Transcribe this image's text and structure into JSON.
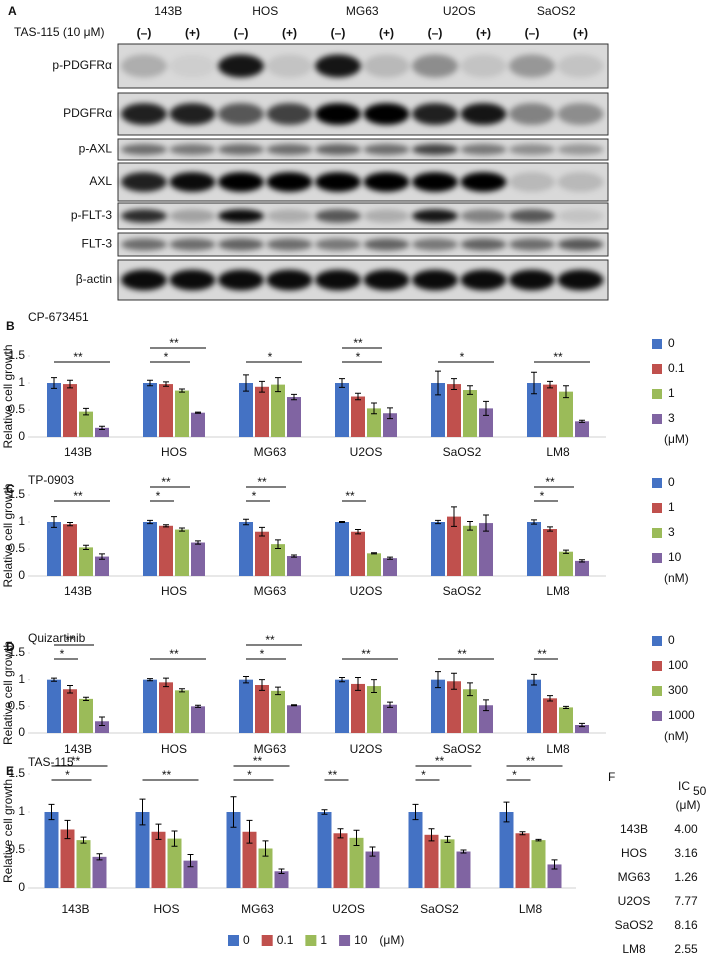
{
  "panel_a": {
    "label": "A",
    "treatment": "TAS-115 (10 μM)",
    "cell_lines": [
      "143B",
      "HOS",
      "MG63",
      "U2OS",
      "SaOS2"
    ],
    "conditions": [
      "(–)",
      "(+)",
      "(–)",
      "(+)",
      "(–)",
      "(+)",
      "(–)",
      "(+)",
      "(–)",
      "(+)"
    ],
    "rows": [
      "p-PDGFRα",
      "PDGFRα",
      "p-AXL",
      "AXL",
      "p-FLT-3",
      "FLT-3",
      "β-actin"
    ]
  },
  "chart_data": [
    {
      "type": "bar",
      "panel": "B",
      "title": "CP-673451",
      "y_label": "Relative cell growth",
      "legend": "right",
      "legend_unit": "(μM)",
      "categories": [
        "143B",
        "HOS",
        "MG63",
        "U2OS",
        "SaOS2",
        "LM8"
      ],
      "ylim": [
        0,
        1.5
      ],
      "yticks": [
        0,
        0.5,
        1,
        1.5
      ],
      "series": [
        {
          "name": "0",
          "color": "#4472c4",
          "values": [
            1.0,
            1.0,
            1.0,
            1.0,
            1.0,
            1.0
          ],
          "errors": [
            0.1,
            0.05,
            0.15,
            0.08,
            0.22,
            0.2
          ]
        },
        {
          "name": "0.1",
          "color": "#c0504d",
          "values": [
            0.98,
            0.98,
            0.93,
            0.75,
            0.98,
            0.97
          ],
          "errors": [
            0.07,
            0.04,
            0.1,
            0.06,
            0.1,
            0.06
          ]
        },
        {
          "name": "1",
          "color": "#9bbb59",
          "values": [
            0.47,
            0.86,
            0.97,
            0.53,
            0.87,
            0.84
          ],
          "errors": [
            0.06,
            0.03,
            0.13,
            0.1,
            0.08,
            0.11
          ]
        },
        {
          "name": "3",
          "color": "#8064a2",
          "values": [
            0.17,
            0.45,
            0.74,
            0.44,
            0.53,
            0.29
          ],
          "errors": [
            0.03,
            0.01,
            0.05,
            0.1,
            0.13,
            0.02
          ]
        }
      ],
      "significance": [
        {
          "category": "143B",
          "series": "3",
          "label": "**"
        },
        {
          "category": "HOS",
          "series": "1",
          "label": "*"
        },
        {
          "category": "HOS",
          "series": "3",
          "label": "**"
        },
        {
          "category": "MG63",
          "series": "3",
          "label": "*"
        },
        {
          "category": "U2OS",
          "series": "1",
          "label": "*"
        },
        {
          "category": "U2OS",
          "series": "1",
          "label": "**"
        },
        {
          "category": "SaOS2",
          "series": "3",
          "label": "*"
        },
        {
          "category": "LM8",
          "series": "3",
          "label": "**"
        }
      ]
    },
    {
      "type": "bar",
      "panel": "C",
      "title": "TP-0903",
      "y_label": "Relative cell growth",
      "legend": "right",
      "legend_unit": "(nM)",
      "categories": [
        "143B",
        "HOS",
        "MG63",
        "U2OS",
        "SaOS2",
        "LM8"
      ],
      "ylim": [
        0,
        1.5
      ],
      "yticks": [
        0,
        0.5,
        1,
        1.5
      ],
      "series": [
        {
          "name": "0",
          "color": "#4472c4",
          "values": [
            1.0,
            1.0,
            1.0,
            1.0,
            1.0,
            1.0
          ],
          "errors": [
            0.1,
            0.03,
            0.05,
            0.01,
            0.03,
            0.04
          ]
        },
        {
          "name": "1",
          "color": "#c0504d",
          "values": [
            0.96,
            0.93,
            0.82,
            0.82,
            1.1,
            0.87
          ],
          "errors": [
            0.03,
            0.02,
            0.08,
            0.04,
            0.18,
            0.04
          ]
        },
        {
          "name": "3",
          "color": "#9bbb59",
          "values": [
            0.53,
            0.86,
            0.59,
            0.42,
            0.93,
            0.45
          ],
          "errors": [
            0.04,
            0.03,
            0.08,
            0.01,
            0.08,
            0.03
          ]
        },
        {
          "name": "10",
          "color": "#8064a2",
          "values": [
            0.36,
            0.62,
            0.37,
            0.33,
            0.98,
            0.28
          ],
          "errors": [
            0.05,
            0.03,
            0.02,
            0.02,
            0.15,
            0.02
          ]
        }
      ],
      "significance": [
        {
          "category": "143B",
          "series": "10",
          "label": "**"
        },
        {
          "category": "HOS",
          "series": "1",
          "label": "*"
        },
        {
          "category": "HOS",
          "series": "3",
          "label": "**"
        },
        {
          "category": "MG63",
          "series": "1",
          "label": "*"
        },
        {
          "category": "MG63",
          "series": "3",
          "label": "**"
        },
        {
          "category": "U2OS",
          "series": "1",
          "label": "**"
        },
        {
          "category": "LM8",
          "series": "1",
          "label": "*"
        },
        {
          "category": "LM8",
          "series": "3",
          "label": "**"
        }
      ]
    },
    {
      "type": "bar",
      "panel": "D",
      "title": "Quizartinib",
      "y_label": "Relative cell growth",
      "legend": "right",
      "legend_unit": "(nM)",
      "categories": [
        "143B",
        "HOS",
        "MG63",
        "U2OS",
        "SaOS2",
        "LM8"
      ],
      "ylim": [
        0,
        1.5
      ],
      "yticks": [
        0,
        0.5,
        1,
        1.5
      ],
      "series": [
        {
          "name": "0",
          "color": "#4472c4",
          "values": [
            1.0,
            1.0,
            1.0,
            1.0,
            1.0,
            1.0
          ],
          "errors": [
            0.03,
            0.02,
            0.06,
            0.04,
            0.15,
            0.1
          ]
        },
        {
          "name": "100",
          "color": "#c0504d",
          "values": [
            0.82,
            0.95,
            0.9,
            0.92,
            0.97,
            0.65
          ],
          "errors": [
            0.07,
            0.08,
            0.1,
            0.12,
            0.15,
            0.05
          ]
        },
        {
          "name": "300",
          "color": "#9bbb59",
          "values": [
            0.64,
            0.8,
            0.79,
            0.88,
            0.82,
            0.48
          ],
          "errors": [
            0.03,
            0.03,
            0.07,
            0.12,
            0.12,
            0.02
          ]
        },
        {
          "name": "1000",
          "color": "#8064a2",
          "values": [
            0.22,
            0.5,
            0.52,
            0.53,
            0.52,
            0.15
          ],
          "errors": [
            0.08,
            0.02,
            0.01,
            0.05,
            0.1,
            0.03
          ]
        }
      ],
      "significance": [
        {
          "category": "143B",
          "series": "100",
          "label": "*"
        },
        {
          "category": "143B",
          "series": "300",
          "label": "**"
        },
        {
          "category": "HOS",
          "series": "1000",
          "label": "**"
        },
        {
          "category": "MG63",
          "series": "300",
          "label": "*"
        },
        {
          "category": "MG63",
          "series": "1000",
          "label": "**"
        },
        {
          "category": "U2OS",
          "series": "1000",
          "label": "**"
        },
        {
          "category": "SaOS2",
          "series": "1000",
          "label": "**"
        },
        {
          "category": "LM8",
          "series": "100",
          "label": "**"
        }
      ]
    },
    {
      "type": "bar",
      "panel": "E",
      "title": "TAS-115",
      "y_label": "Relative cell growth",
      "legend": "bottom",
      "legend_unit": "(μM)",
      "categories": [
        "143B",
        "HOS",
        "MG63",
        "U2OS",
        "SaOS2",
        "LM8"
      ],
      "ylim": [
        0,
        1.5
      ],
      "yticks": [
        0,
        0.5,
        1,
        1.5
      ],
      "series": [
        {
          "name": "0",
          "color": "#4472c4",
          "values": [
            1.0,
            1.0,
            1.0,
            1.0,
            1.0,
            1.0
          ],
          "errors": [
            0.1,
            0.17,
            0.2,
            0.03,
            0.1,
            0.13
          ]
        },
        {
          "name": "0.1",
          "color": "#c0504d",
          "values": [
            0.77,
            0.74,
            0.74,
            0.72,
            0.7,
            0.72
          ],
          "errors": [
            0.12,
            0.1,
            0.15,
            0.06,
            0.08,
            0.02
          ]
        },
        {
          "name": "1",
          "color": "#9bbb59",
          "values": [
            0.63,
            0.65,
            0.52,
            0.66,
            0.64,
            0.63
          ],
          "errors": [
            0.04,
            0.1,
            0.1,
            0.1,
            0.04,
            0.01
          ]
        },
        {
          "name": "10",
          "color": "#8064a2",
          "values": [
            0.41,
            0.36,
            0.22,
            0.48,
            0.48,
            0.31
          ],
          "errors": [
            0.04,
            0.08,
            0.03,
            0.06,
            0.02,
            0.06
          ]
        }
      ],
      "significance": [
        {
          "category": "143B",
          "series": "1",
          "label": "*"
        },
        {
          "category": "143B",
          "series": "10",
          "label": "**"
        },
        {
          "category": "HOS",
          "series": "10",
          "label": "**"
        },
        {
          "category": "MG63",
          "series": "1",
          "label": "*"
        },
        {
          "category": "MG63",
          "series": "10",
          "label": "**"
        },
        {
          "category": "U2OS",
          "series": "0.1",
          "label": "**"
        },
        {
          "category": "SaOS2",
          "series": "0.1",
          "label": "*"
        },
        {
          "category": "SaOS2",
          "series": "10",
          "label": "**"
        },
        {
          "category": "LM8",
          "series": "0.1",
          "label": "*"
        },
        {
          "category": "LM8",
          "series": "10",
          "label": "**"
        }
      ]
    }
  ],
  "panel_f": {
    "label": "F",
    "header": {
      "symbol": "IC",
      "subscript": "50",
      "unit": "(μM)"
    },
    "rows": [
      [
        "143B",
        "4.00"
      ],
      [
        "HOS",
        "3.16"
      ],
      [
        "MG63",
        "1.26"
      ],
      [
        "U2OS",
        "7.77"
      ],
      [
        "SaOS2",
        "8.16"
      ],
      [
        "LM8",
        "2.55"
      ]
    ]
  }
}
